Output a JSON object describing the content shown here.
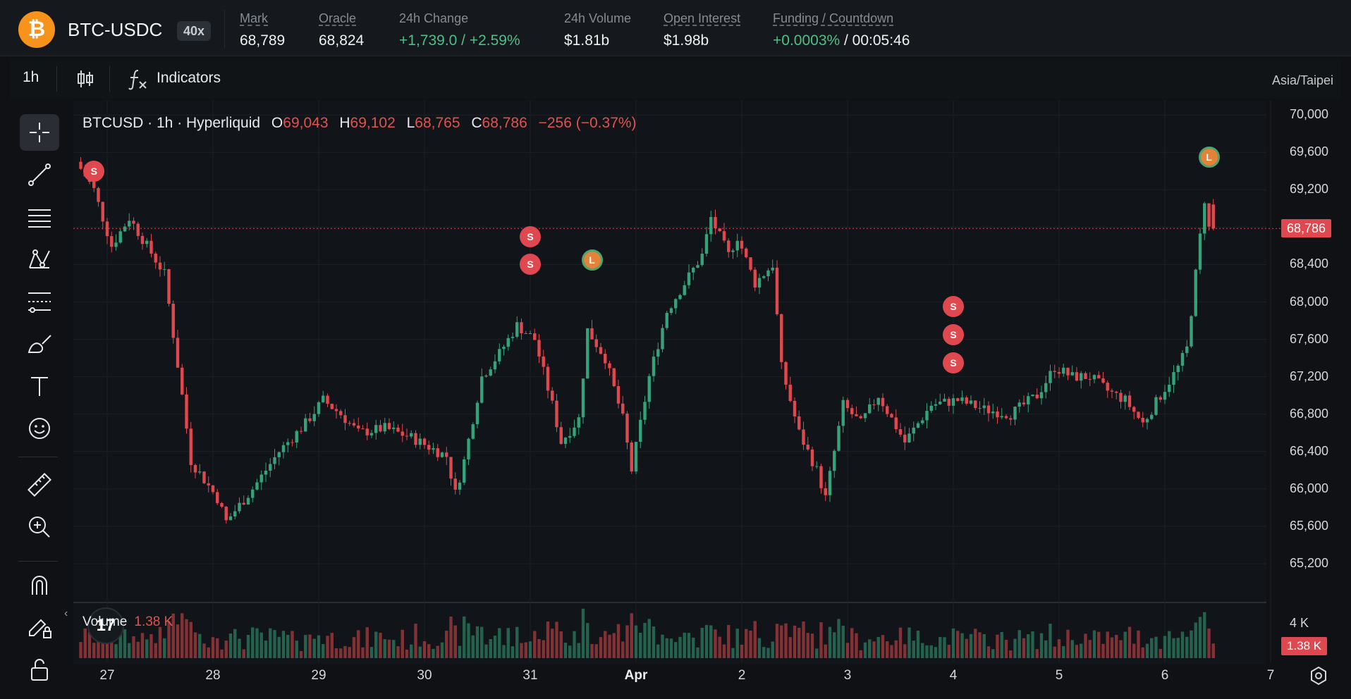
{
  "header": {
    "logo_glyph": "₿",
    "pair": "BTC-USDC",
    "leverage": "40x",
    "stats": [
      {
        "label": "Mark",
        "value": "68,789"
      },
      {
        "label": "Oracle",
        "value": "68,824"
      },
      {
        "label": "24h Change",
        "value": "+1,739.0 / +2.59%"
      },
      {
        "label": "24h Volume",
        "value": "$1.81b"
      },
      {
        "label": "Open Interest",
        "value": "$1.98b"
      },
      {
        "label": "Funding / Countdown",
        "funding": "+0.0003%",
        "countdown": " / 00:05:46"
      }
    ]
  },
  "toolbar": {
    "timeframe": "1h",
    "indicators_label": "Indicators",
    "candle_icon": "candlestick-icon",
    "indicators_icon": "function-icon"
  },
  "timezone": "Asia/Taipei",
  "left_tools": [
    "crosshair-icon",
    "trend-line-icon",
    "horizontal-lines-icon",
    "pattern-icon",
    "fib-icon",
    "brush-icon",
    "text-icon",
    "emoji-icon",
    "ruler-icon",
    "zoom-in-icon",
    "magnet-icon",
    "lock-drawing-icon",
    "unlock-icon"
  ],
  "legend": {
    "symbol": "BTCUSD · 1h · Hyperliquid",
    "o_label": "O",
    "o": "69,043",
    "h_label": "H",
    "h": "69,102",
    "l_label": "L",
    "l": "68,765",
    "c_label": "C",
    "c": "68,786",
    "change": "−256 (−0.37%)"
  },
  "volume": {
    "label": "Volume",
    "value": "1.38 K",
    "axis_label": "4 K",
    "tag": "1.38 K"
  },
  "price_tag": "68,786",
  "colors": {
    "up": "#35a27a",
    "down": "#e0484f",
    "background": "#0f1114",
    "accent": "#f7931a"
  },
  "chart_data": {
    "type": "candlestick",
    "title": "BTCUSD · 1h · Hyperliquid",
    "y_ticks": [
      "70,000",
      "69,600",
      "69,200",
      "68,800",
      "68,400",
      "68,000",
      "67,600",
      "67,200",
      "66,800",
      "66,400",
      "66,000",
      "65,600",
      "65,200"
    ],
    "x_ticks": [
      "27",
      "28",
      "29",
      "30",
      "31",
      "Apr",
      "2",
      "3",
      "4",
      "5",
      "6",
      "7"
    ],
    "ylim": [
      64800,
      70100
    ],
    "last_price": 68786,
    "close_path": [
      {
        "x": "26 18:00",
        "y": 69500
      },
      {
        "x": "26 22:00",
        "y": 69200
      },
      {
        "x": "27 02:00",
        "y": 68600
      },
      {
        "x": "27 06:00",
        "y": 68900
      },
      {
        "x": "27 10:00",
        "y": 68600
      },
      {
        "x": "27 14:00",
        "y": 68300
      },
      {
        "x": "27 18:00",
        "y": 67000
      },
      {
        "x": "27 20:00",
        "y": 66300
      },
      {
        "x": "28 02:00",
        "y": 65900
      },
      {
        "x": "28 04:00",
        "y": 65650
      },
      {
        "x": "28 10:00",
        "y": 66000
      },
      {
        "x": "28 16:00",
        "y": 66400
      },
      {
        "x": "28 22:00",
        "y": 66700
      },
      {
        "x": "29 02:00",
        "y": 66950
      },
      {
        "x": "29 06:00",
        "y": 66800
      },
      {
        "x": "29 10:00",
        "y": 66600
      },
      {
        "x": "29 16:00",
        "y": 66650
      },
      {
        "x": "29 22:00",
        "y": 66550
      },
      {
        "x": "30 02:00",
        "y": 66450
      },
      {
        "x": "30 06:00",
        "y": 66350
      },
      {
        "x": "30 08:00",
        "y": 65950
      },
      {
        "x": "30 10:00",
        "y": 66300
      },
      {
        "x": "30 14:00",
        "y": 67200
      },
      {
        "x": "30 18:00",
        "y": 67450
      },
      {
        "x": "30 22:00",
        "y": 67750
      },
      {
        "x": "31 02:00",
        "y": 67600
      },
      {
        "x": "31 06:00",
        "y": 66900
      },
      {
        "x": "31 08:00",
        "y": 66500
      },
      {
        "x": "31 12:00",
        "y": 66750
      },
      {
        "x": "31 14:00",
        "y": 67700
      },
      {
        "x": "31 18:00",
        "y": 67400
      },
      {
        "x": "31 22:00",
        "y": 66750
      },
      {
        "x": "01 00:00",
        "y": 66200
      },
      {
        "x": "01 04:00",
        "y": 67200
      },
      {
        "x": "01 08:00",
        "y": 67900
      },
      {
        "x": "01 12:00",
        "y": 68200
      },
      {
        "x": "01 16:00",
        "y": 68500
      },
      {
        "x": "01 18:00",
        "y": 68900
      },
      {
        "x": "01 22:00",
        "y": 68500
      },
      {
        "x": "02 00:00",
        "y": 68700
      },
      {
        "x": "02 04:00",
        "y": 68200
      },
      {
        "x": "02 08:00",
        "y": 68400
      },
      {
        "x": "02 10:00",
        "y": 67300
      },
      {
        "x": "02 14:00",
        "y": 66600
      },
      {
        "x": "02 18:00",
        "y": 66200
      },
      {
        "x": "02 20:00",
        "y": 65900
      },
      {
        "x": "03 00:00",
        "y": 66900
      },
      {
        "x": "03 04:00",
        "y": 66700
      },
      {
        "x": "03 08:00",
        "y": 67000
      },
      {
        "x": "03 14:00",
        "y": 66500
      },
      {
        "x": "03 20:00",
        "y": 66900
      },
      {
        "x": "04 02:00",
        "y": 66950
      },
      {
        "x": "04 08:00",
        "y": 66850
      },
      {
        "x": "04 14:00",
        "y": 66800
      },
      {
        "x": "04 20:00",
        "y": 67000
      },
      {
        "x": "05 00:00",
        "y": 67300
      },
      {
        "x": "05 04:00",
        "y": 67200
      },
      {
        "x": "05 08:00",
        "y": 67200
      },
      {
        "x": "05 12:00",
        "y": 67050
      },
      {
        "x": "05 16:00",
        "y": 66950
      },
      {
        "x": "05 20:00",
        "y": 66700
      },
      {
        "x": "06 00:00",
        "y": 67000
      },
      {
        "x": "06 04:00",
        "y": 67300
      },
      {
        "x": "06 06:00",
        "y": 67500
      },
      {
        "x": "06 08:00",
        "y": 68300
      },
      {
        "x": "06 10:00",
        "y": 69100
      },
      {
        "x": "06 11:00",
        "y": 68786
      }
    ],
    "volume_max_label": "4 K",
    "last_volume": "1.38 K",
    "trade_markers": [
      {
        "label": "S",
        "x": "26 21:00",
        "y": 69400
      },
      {
        "label": "S",
        "x": "31 00:00",
        "y": 68700
      },
      {
        "label": "S",
        "x": "31 00:00",
        "y": 68400
      },
      {
        "label": "L",
        "x": "31 14:00",
        "y": 68450
      },
      {
        "label": "S",
        "x": "04 00:00",
        "y": 67950
      },
      {
        "label": "S",
        "x": "04 00:00",
        "y": 67650
      },
      {
        "label": "S",
        "x": "04 00:00",
        "y": 67350
      },
      {
        "label": "L",
        "x": "06 10:00",
        "y": 69550
      }
    ]
  }
}
